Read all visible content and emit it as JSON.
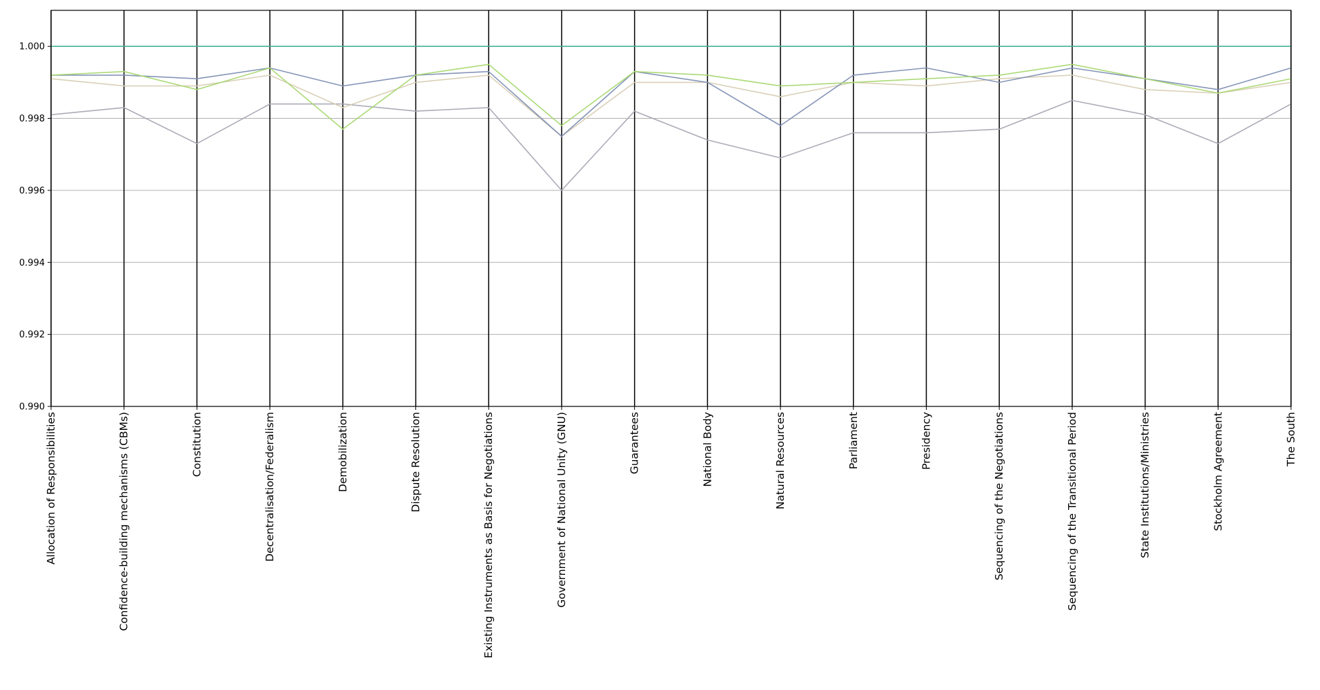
{
  "chart_data": {
    "type": "line",
    "subtype": "parallel-coordinates",
    "title": "",
    "xlabel": "",
    "ylabel": "",
    "ylim": [
      0.99,
      1.001
    ],
    "yticks": [
      "0.990",
      "0.992",
      "0.994",
      "0.996",
      "0.998",
      "1.000"
    ],
    "grid": "horizontal",
    "legend": "none",
    "categories": [
      "Allocation of Responsibilities",
      "Confidence-building mechanisms (CBMs)",
      "Constitution",
      "Decentralisation/Federalism",
      "Demobilization",
      "Dispute Resolution",
      "Existing Instruments as Basis for Negotiations",
      "Government of National Unity (GNU)",
      "Guarantees",
      "National Body",
      "Natural Resources",
      "Parliament",
      "Presidency",
      "Sequencing of the Negotiations",
      "Sequencing of the Transitional Period",
      "State Institutions/Ministries",
      "Stockholm Agreement",
      "The South"
    ],
    "series": [
      {
        "color": "#40b090",
        "values": [
          1.0,
          1.0,
          1.0,
          1.0,
          1.0,
          1.0,
          1.0,
          1.0,
          1.0,
          1.0,
          1.0,
          1.0,
          1.0,
          1.0,
          1.0,
          1.0,
          1.0,
          1.0
        ]
      },
      {
        "color": "#a8a8b4",
        "values": [
          0.9981,
          0.9983,
          0.9973,
          0.9984,
          0.9984,
          0.9982,
          0.9983,
          0.996,
          0.9982,
          0.9974,
          0.9969,
          0.9976,
          0.9976,
          0.9977,
          0.9985,
          0.9981,
          0.9973,
          0.9984
        ]
      },
      {
        "color": "#d8cdb4",
        "values": [
          0.9991,
          0.9989,
          0.9989,
          0.9992,
          0.9983,
          0.999,
          0.9992,
          0.9975,
          0.999,
          0.999,
          0.9986,
          0.999,
          0.9989,
          0.9991,
          0.9992,
          0.9988,
          0.9987,
          0.999
        ]
      },
      {
        "color": "#8090b4",
        "values": [
          0.9992,
          0.9992,
          0.9991,
          0.9994,
          0.9989,
          0.9992,
          0.9993,
          0.9975,
          0.9993,
          0.999,
          0.9978,
          0.9992,
          0.9994,
          0.999,
          0.9994,
          0.9991,
          0.9988,
          0.9994
        ]
      },
      {
        "color": "#a8d870",
        "values": [
          0.9992,
          0.9993,
          0.9988,
          0.9994,
          0.9977,
          0.9992,
          0.9995,
          0.9978,
          0.9993,
          0.9992,
          0.9989,
          0.999,
          0.9991,
          0.9992,
          0.9995,
          0.9991,
          0.9987,
          0.9991
        ]
      }
    ]
  }
}
